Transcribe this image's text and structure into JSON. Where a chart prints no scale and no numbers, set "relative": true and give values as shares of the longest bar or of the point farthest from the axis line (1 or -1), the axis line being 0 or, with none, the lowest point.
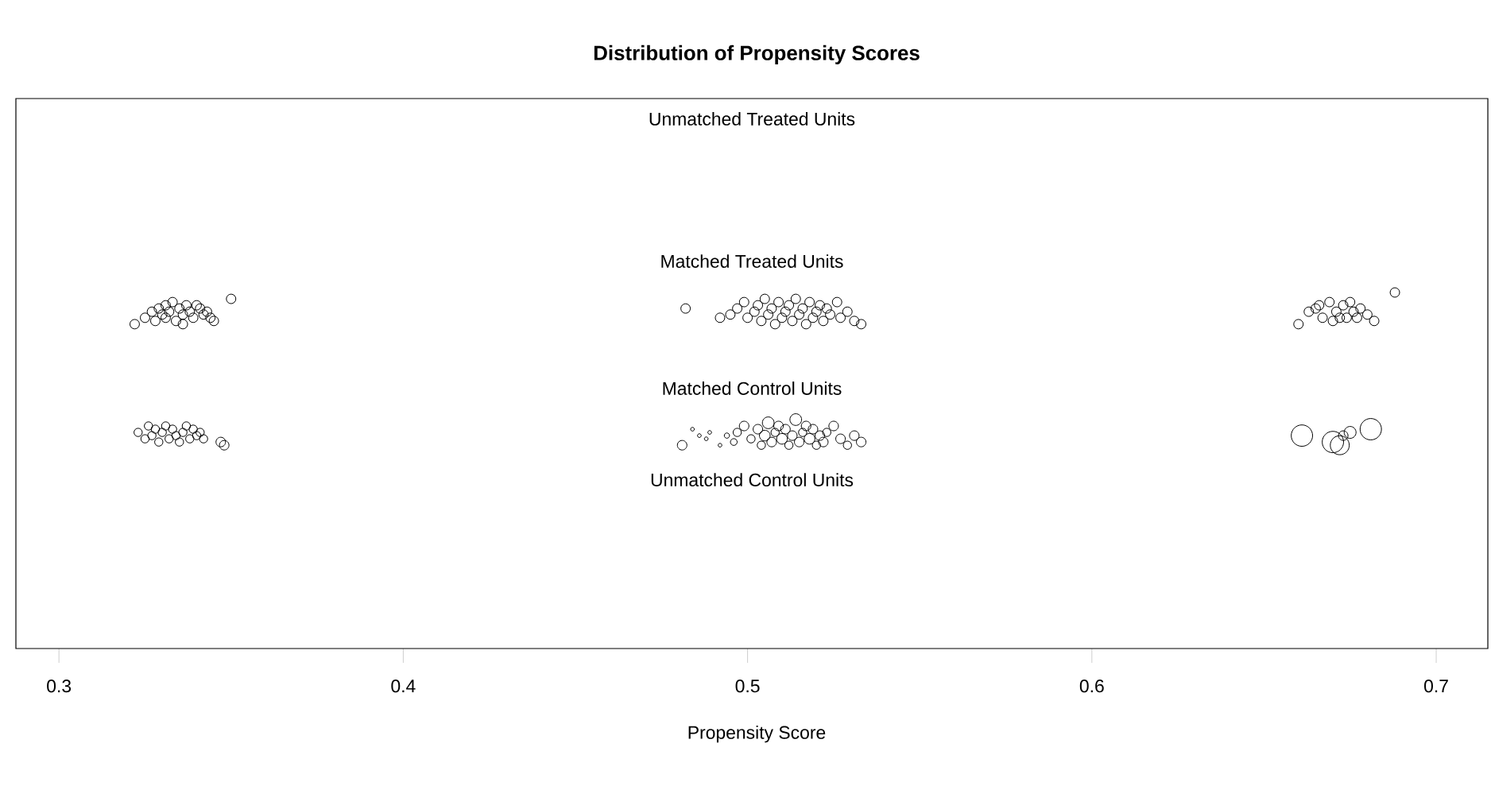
{
  "chart_data": {
    "type": "scatter",
    "title": "Distribution of Propensity Scores",
    "xlabel": "Propensity Score",
    "annotations": [
      "Unmatched Treated Units",
      "Unmatched Control Units"
    ],
    "xlim": [
      0.2875,
      0.715
    ],
    "xticks": [
      0.3,
      0.4,
      0.5,
      0.6,
      0.7
    ],
    "relative": true,
    "marker": "circle",
    "series": [
      {
        "name": "Matched Treated Units",
        "color": "#000000",
        "x": [
          0.322,
          0.325,
          0.327,
          0.328,
          0.329,
          0.33,
          0.331,
          0.331,
          0.332,
          0.333,
          0.334,
          0.335,
          0.336,
          0.336,
          0.337,
          0.338,
          0.339,
          0.34,
          0.341,
          0.342,
          0.343,
          0.344,
          0.345,
          0.35,
          0.482,
          0.492,
          0.495,
          0.497,
          0.499,
          0.5,
          0.502,
          0.503,
          0.504,
          0.505,
          0.506,
          0.507,
          0.508,
          0.509,
          0.51,
          0.511,
          0.512,
          0.513,
          0.514,
          0.515,
          0.516,
          0.517,
          0.518,
          0.519,
          0.52,
          0.521,
          0.522,
          0.523,
          0.524,
          0.526,
          0.527,
          0.529,
          0.531,
          0.533,
          0.66,
          0.663,
          0.665,
          0.666,
          0.667,
          0.669,
          0.67,
          0.671,
          0.672,
          0.673,
          0.674,
          0.675,
          0.676,
          0.677,
          0.678,
          0.68,
          0.682,
          0.688
        ],
        "values": [
          0.911,
          0.929,
          0.946,
          0.92,
          0.955,
          0.938,
          0.964,
          0.929,
          0.946,
          0.973,
          0.92,
          0.955,
          0.938,
          0.911,
          0.964,
          0.946,
          0.929,
          0.964,
          0.955,
          0.938,
          0.946,
          0.929,
          0.92,
          0.982,
          0.955,
          0.929,
          0.938,
          0.955,
          0.973,
          0.929,
          0.946,
          0.964,
          0.92,
          0.982,
          0.938,
          0.955,
          0.911,
          0.973,
          0.929,
          0.946,
          0.964,
          0.92,
          0.982,
          0.938,
          0.955,
          0.911,
          0.973,
          0.929,
          0.946,
          0.964,
          0.92,
          0.955,
          0.938,
          0.973,
          0.929,
          0.946,
          0.92,
          0.911,
          0.911,
          0.946,
          0.955,
          0.964,
          0.929,
          0.973,
          0.92,
          0.946,
          0.929,
          0.964,
          0.929,
          0.973,
          0.946,
          0.929,
          0.955,
          0.938,
          0.92,
          1.0
        ]
      },
      {
        "name": "Matched Control Units",
        "type": "bubble",
        "color": "#000000",
        "x": [
          0.323,
          0.325,
          0.326,
          0.327,
          0.328,
          0.329,
          0.33,
          0.331,
          0.332,
          0.333,
          0.334,
          0.335,
          0.336,
          0.337,
          0.338,
          0.339,
          0.34,
          0.341,
          0.342,
          0.347,
          0.348,
          0.481,
          0.484,
          0.486,
          0.488,
          0.489,
          0.492,
          0.494,
          0.496,
          0.497,
          0.499,
          0.501,
          0.503,
          0.504,
          0.505,
          0.506,
          0.507,
          0.508,
          0.509,
          0.51,
          0.511,
          0.512,
          0.513,
          0.514,
          0.515,
          0.516,
          0.517,
          0.518,
          0.519,
          0.52,
          0.521,
          0.522,
          0.523,
          0.525,
          0.527,
          0.529,
          0.531,
          0.533,
          0.661,
          0.67,
          0.672,
          0.673,
          0.675,
          0.681
        ],
        "values": [
          0.607,
          0.589,
          0.625,
          0.598,
          0.616,
          0.58,
          0.607,
          0.625,
          0.589,
          0.616,
          0.598,
          0.58,
          0.607,
          0.625,
          0.589,
          0.616,
          0.598,
          0.607,
          0.589,
          0.58,
          0.571,
          0.571,
          0.616,
          0.598,
          0.589,
          0.607,
          0.571,
          0.598,
          0.58,
          0.607,
          0.625,
          0.589,
          0.616,
          0.571,
          0.598,
          0.634,
          0.58,
          0.607,
          0.625,
          0.589,
          0.616,
          0.571,
          0.598,
          0.643,
          0.58,
          0.607,
          0.625,
          0.589,
          0.616,
          0.571,
          0.598,
          0.58,
          0.607,
          0.625,
          0.589,
          0.571,
          0.598,
          0.58,
          0.598,
          0.58,
          0.571,
          0.598,
          0.607,
          0.616
        ],
        "sizes": [
          0.15,
          0.15,
          0.15,
          0.15,
          0.15,
          0.15,
          0.15,
          0.15,
          0.15,
          0.15,
          0.15,
          0.15,
          0.15,
          0.15,
          0.15,
          0.15,
          0.15,
          0.15,
          0.15,
          0.2,
          0.2,
          0.2,
          0.03,
          0.03,
          0.03,
          0.03,
          0.03,
          0.06,
          0.1,
          0.15,
          0.2,
          0.15,
          0.2,
          0.15,
          0.25,
          0.3,
          0.2,
          0.15,
          0.2,
          0.25,
          0.2,
          0.15,
          0.2,
          0.3,
          0.2,
          0.15,
          0.2,
          0.25,
          0.2,
          0.15,
          0.2,
          0.2,
          0.15,
          0.2,
          0.2,
          0.15,
          0.2,
          0.2,
          1,
          1,
          0.79,
          0.2,
          0.31,
          1
        ]
      }
    ]
  }
}
